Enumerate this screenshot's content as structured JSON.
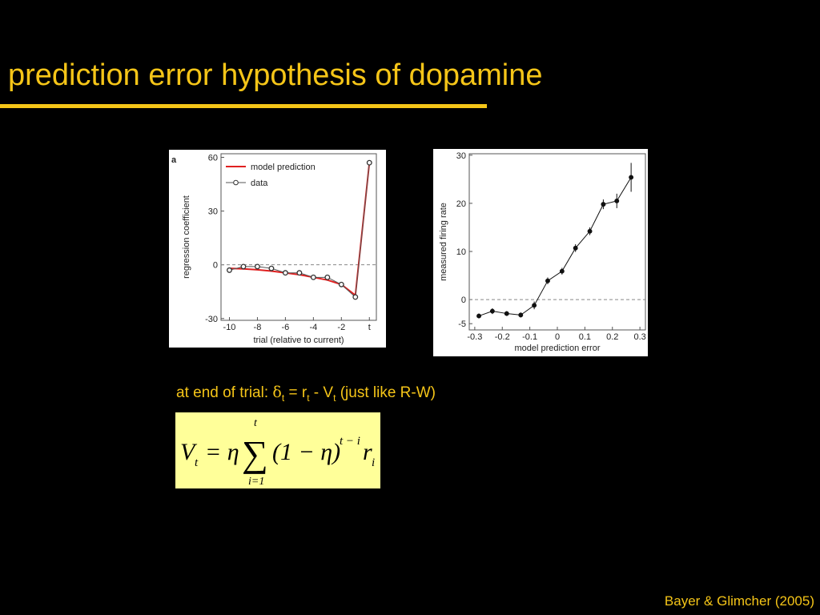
{
  "title": "prediction error hypothesis of dopamine",
  "chart_data": [
    {
      "type": "line",
      "panel_label": "a",
      "xlabel": "trial (relative to current)",
      "ylabel": "regression coefficient",
      "x": [
        -10,
        -9,
        -8,
        -7,
        -6,
        -5,
        -4,
        -3,
        -2,
        -1,
        0
      ],
      "series": [
        {
          "name": "model prediction",
          "color": "#e02020",
          "marker": false,
          "values": [
            -2,
            -2.3,
            -2.8,
            -3.5,
            -4.5,
            -5.5,
            -7,
            -8.5,
            -11,
            -17,
            57
          ]
        },
        {
          "name": "data",
          "color": "#555555",
          "marker": true,
          "values": [
            -3,
            -1,
            -1,
            -2,
            -4.5,
            -4.5,
            -7,
            -7,
            -11,
            -18,
            57
          ]
        }
      ],
      "xlim": [
        -10.6,
        0.5
      ],
      "xticks": [
        -10,
        -8,
        -6,
        -4,
        -2,
        {
          "value": 0,
          "label": "t"
        }
      ],
      "ylim": [
        -31,
        62
      ],
      "yticks": [
        -30,
        0,
        30,
        60
      ],
      "zero_line": true,
      "legend": "top-left"
    },
    {
      "type": "line",
      "xlabel": "model prediction error",
      "ylabel": "measured firing rate",
      "color": "#111111",
      "x": [
        -0.285,
        -0.236,
        -0.184,
        -0.133,
        -0.084,
        -0.035,
        0.017,
        0.066,
        0.118,
        0.167,
        0.216,
        0.268
      ],
      "values": [
        -3.4,
        -2.4,
        -2.9,
        -3.2,
        -1.2,
        3.9,
        5.9,
        10.7,
        14.2,
        19.8,
        20.5,
        25.4
      ],
      "errors": [
        0.5,
        0.6,
        0.5,
        0.5,
        0.8,
        0.7,
        0.7,
        0.8,
        0.8,
        1,
        1.5,
        3
      ],
      "xlim": [
        -0.32,
        0.32
      ],
      "xticks": [
        -0.3,
        -0.2,
        -0.1,
        0,
        0.1,
        0.2,
        0.3
      ],
      "ylim": [
        -6.3,
        30.3
      ],
      "yticks": [
        -5,
        0,
        10,
        20,
        30
      ],
      "zero_line": true
    }
  ],
  "caption": [
    "at end of trial: ",
    "δ",
    "t",
    " = r",
    "t",
    " - V",
    "t",
    " (just like R-W)"
  ],
  "equation": {
    "lhs": "V",
    "lhs_sub": "t",
    "eq": "= η",
    "sum": "∑",
    "upper": "t",
    "lower": "i=1",
    "body": "(1 − η)",
    "exp": "t − i",
    "r": "r",
    "r_sub": "i"
  },
  "citation": "Bayer & Glimcher (2005)"
}
